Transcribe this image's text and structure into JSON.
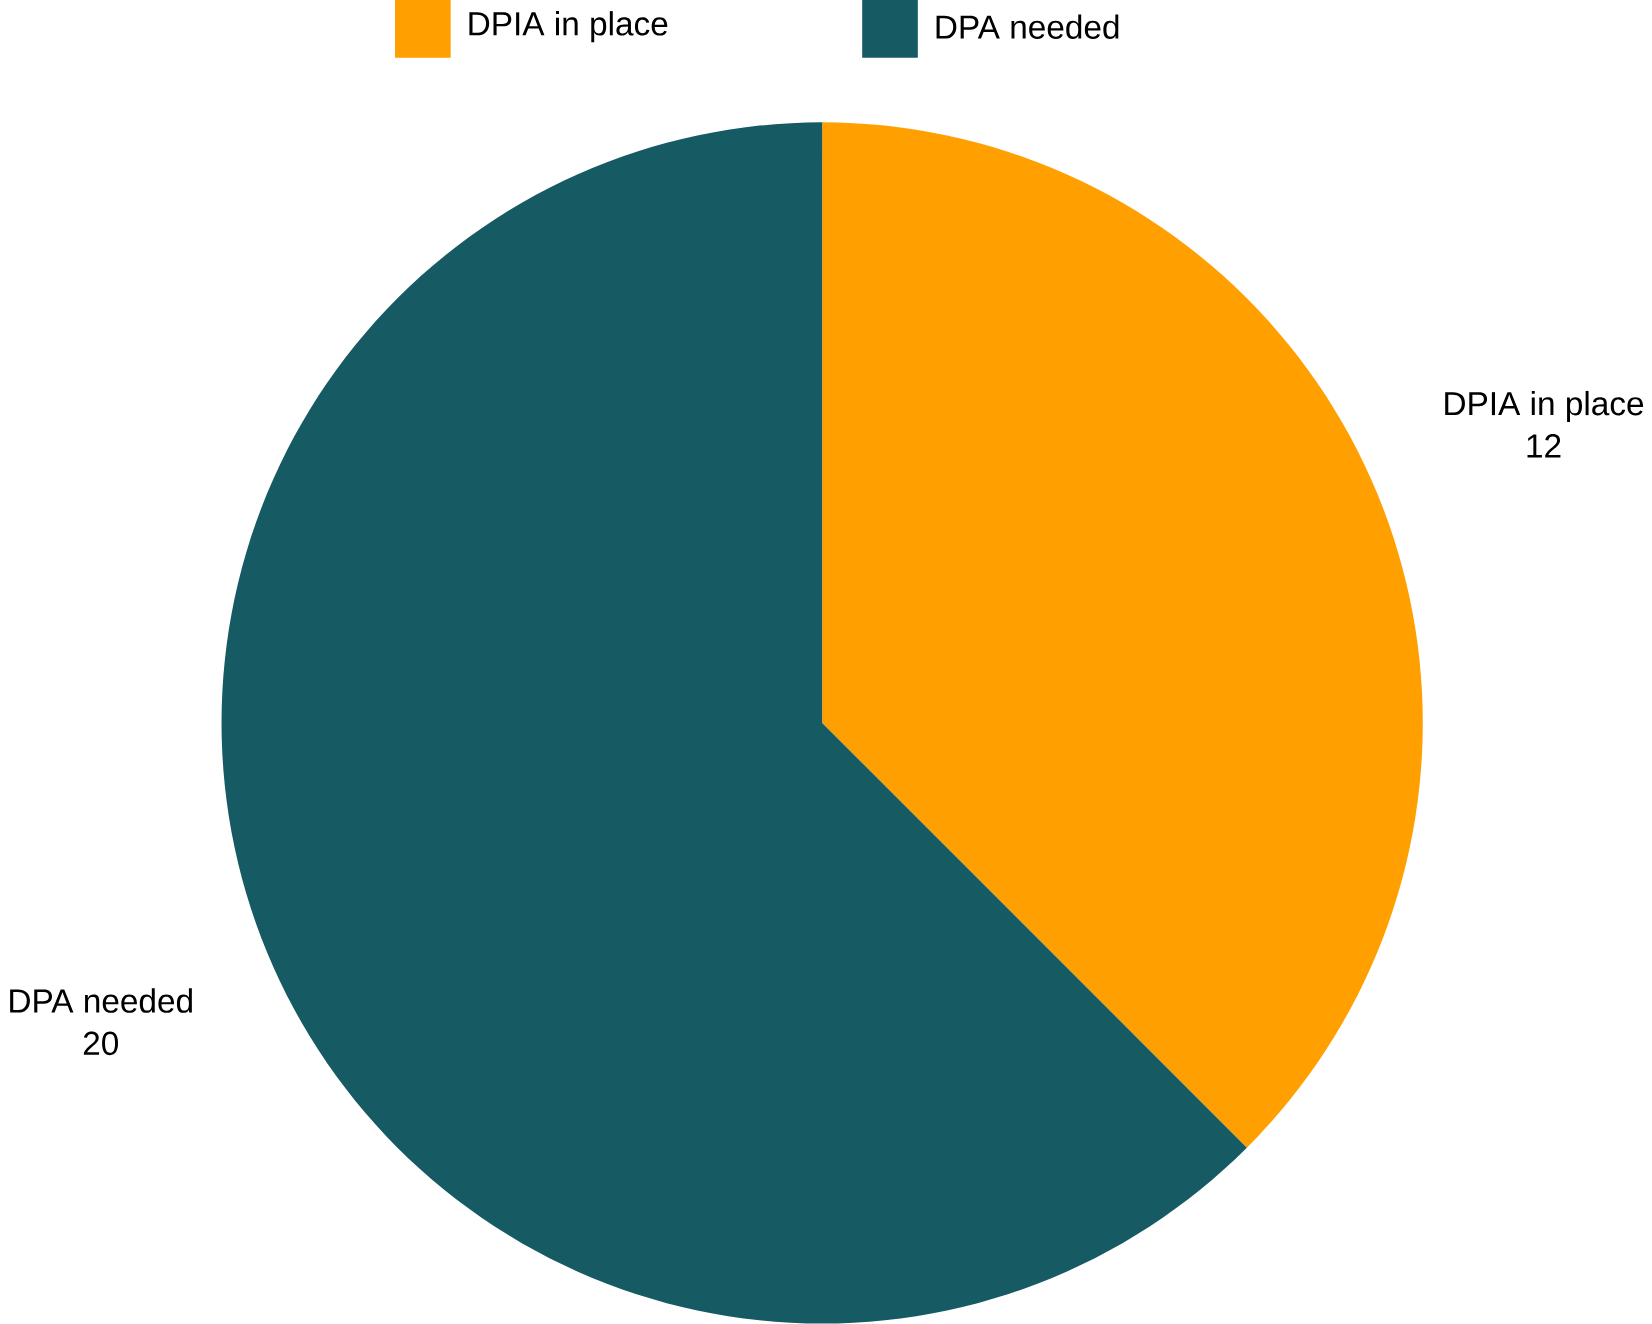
{
  "chart_data": {
    "type": "pie",
    "categories": [
      "DPIA in place",
      "DPA needed"
    ],
    "values": [
      12,
      20
    ],
    "colors": [
      "#ff9f00",
      "#165a64"
    ],
    "legend": "top",
    "data_labels": true
  }
}
